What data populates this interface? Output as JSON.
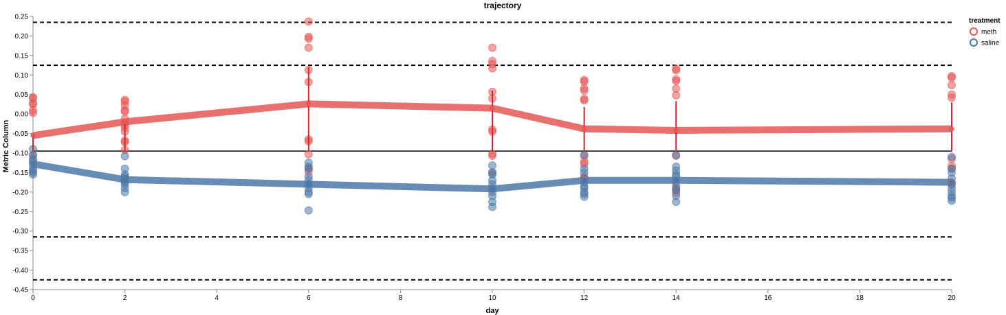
{
  "chart_data": {
    "type": "scatter",
    "title": "trajectory",
    "xlabel": "day",
    "ylabel": "Metric Column",
    "xlim": [
      0,
      20
    ],
    "ylim": [
      -0.45,
      0.25
    ],
    "x_ticks": [
      0,
      2,
      4,
      6,
      8,
      10,
      12,
      14,
      16,
      18,
      20
    ],
    "y_ticks": [
      0.25,
      0.2,
      0.15,
      0.1,
      0.05,
      0.0,
      -0.05,
      -0.1,
      -0.15,
      -0.2,
      -0.25,
      -0.3,
      -0.35,
      -0.4,
      -0.45
    ],
    "grid": false,
    "legend": {
      "title": "treatment",
      "placement": "top-right",
      "entries": [
        {
          "name": "meth",
          "color": "#e45756"
        },
        {
          "name": "saline",
          "color": "#4c78a8"
        }
      ]
    },
    "reference_lines": {
      "solid": [
        -0.095
      ],
      "dashed": [
        0.235,
        0.125,
        -0.315,
        -0.425
      ]
    },
    "series": [
      {
        "name": "meth",
        "color": "#e45756",
        "mean": [
          {
            "x": 0,
            "y": -0.055
          },
          {
            "x": 2,
            "y": -0.02
          },
          {
            "x": 6,
            "y": 0.026
          },
          {
            "x": 10,
            "y": 0.015
          },
          {
            "x": 12,
            "y": -0.038
          },
          {
            "x": 14,
            "y": -0.042
          },
          {
            "x": 20,
            "y": -0.038
          }
        ],
        "error_bars": [
          {
            "x": 0,
            "low": -0.095,
            "high": -0.055
          },
          {
            "x": 2,
            "low": -0.095,
            "high": -0.02
          },
          {
            "x": 6,
            "low": -0.095,
            "high": 0.12
          },
          {
            "x": 10,
            "low": -0.095,
            "high": 0.06
          },
          {
            "x": 12,
            "low": -0.095,
            "high": 0.018
          },
          {
            "x": 14,
            "low": -0.095,
            "high": 0.033
          },
          {
            "x": 20,
            "low": -0.095,
            "high": 0.03
          }
        ],
        "points": [
          {
            "x": 0,
            "y": 0.043
          },
          {
            "x": 0,
            "y": 0.04
          },
          {
            "x": 0,
            "y": 0.028
          },
          {
            "x": 0,
            "y": 0.025
          },
          {
            "x": 0,
            "y": 0.01
          },
          {
            "x": 0,
            "y": 0.003
          },
          {
            "x": 0,
            "y": -0.105
          },
          {
            "x": 0,
            "y": -0.125
          },
          {
            "x": 2,
            "y": 0.036
          },
          {
            "x": 2,
            "y": 0.032
          },
          {
            "x": 2,
            "y": 0.022
          },
          {
            "x": 2,
            "y": 0.01
          },
          {
            "x": 2,
            "y": 0.006
          },
          {
            "x": 2,
            "y": -0.012
          },
          {
            "x": 2,
            "y": -0.022
          },
          {
            "x": 2,
            "y": -0.028
          },
          {
            "x": 2,
            "y": -0.035
          },
          {
            "x": 2,
            "y": -0.045
          },
          {
            "x": 2,
            "y": -0.068
          },
          {
            "x": 2,
            "y": -0.072
          },
          {
            "x": 2,
            "y": -0.092
          },
          {
            "x": 6,
            "y": 0.237
          },
          {
            "x": 6,
            "y": 0.198
          },
          {
            "x": 6,
            "y": 0.193
          },
          {
            "x": 6,
            "y": 0.17
          },
          {
            "x": 6,
            "y": 0.113
          },
          {
            "x": 6,
            "y": 0.082
          },
          {
            "x": 6,
            "y": -0.065
          },
          {
            "x": 6,
            "y": -0.07
          },
          {
            "x": 6,
            "y": -0.103
          },
          {
            "x": 6,
            "y": -0.14
          },
          {
            "x": 6,
            "y": -0.148
          },
          {
            "x": 10,
            "y": 0.17
          },
          {
            "x": 10,
            "y": 0.136
          },
          {
            "x": 10,
            "y": 0.128
          },
          {
            "x": 10,
            "y": 0.117
          },
          {
            "x": 10,
            "y": 0.057
          },
          {
            "x": 10,
            "y": 0.04
          },
          {
            "x": 10,
            "y": -0.04
          },
          {
            "x": 10,
            "y": -0.045
          },
          {
            "x": 10,
            "y": -0.102
          },
          {
            "x": 10,
            "y": -0.107
          },
          {
            "x": 10,
            "y": -0.15
          },
          {
            "x": 12,
            "y": 0.087
          },
          {
            "x": 12,
            "y": 0.083
          },
          {
            "x": 12,
            "y": 0.066
          },
          {
            "x": 12,
            "y": 0.06
          },
          {
            "x": 12,
            "y": 0.039
          },
          {
            "x": 12,
            "y": 0.035
          },
          {
            "x": 12,
            "y": -0.107
          },
          {
            "x": 12,
            "y": -0.122
          },
          {
            "x": 12,
            "y": -0.128
          },
          {
            "x": 12,
            "y": -0.16
          },
          {
            "x": 12,
            "y": -0.166
          },
          {
            "x": 14,
            "y": 0.116
          },
          {
            "x": 14,
            "y": 0.112
          },
          {
            "x": 14,
            "y": 0.089
          },
          {
            "x": 14,
            "y": 0.085
          },
          {
            "x": 14,
            "y": 0.065
          },
          {
            "x": 14,
            "y": 0.048
          },
          {
            "x": 14,
            "y": -0.107
          },
          {
            "x": 14,
            "y": -0.185
          },
          {
            "x": 14,
            "y": -0.195
          },
          {
            "x": 14,
            "y": -0.202
          },
          {
            "x": 20,
            "y": 0.097
          },
          {
            "x": 20,
            "y": 0.093
          },
          {
            "x": 20,
            "y": 0.074
          },
          {
            "x": 20,
            "y": 0.05
          },
          {
            "x": 20,
            "y": 0.042
          },
          {
            "x": 20,
            "y": -0.115
          },
          {
            "x": 20,
            "y": -0.133
          },
          {
            "x": 20,
            "y": -0.14
          },
          {
            "x": 20,
            "y": -0.175
          },
          {
            "x": 20,
            "y": -0.178
          }
        ]
      },
      {
        "name": "saline",
        "color": "#4c78a8",
        "mean": [
          {
            "x": 0,
            "y": -0.128
          },
          {
            "x": 2,
            "y": -0.168
          },
          {
            "x": 6,
            "y": -0.18
          },
          {
            "x": 10,
            "y": -0.192
          },
          {
            "x": 12,
            "y": -0.17
          },
          {
            "x": 14,
            "y": -0.17
          },
          {
            "x": 20,
            "y": -0.175
          }
        ],
        "points": [
          {
            "x": 0,
            "y": -0.09
          },
          {
            "x": 0,
            "y": -0.105
          },
          {
            "x": 0,
            "y": -0.115
          },
          {
            "x": 0,
            "y": -0.12
          },
          {
            "x": 0,
            "y": -0.13
          },
          {
            "x": 0,
            "y": -0.14
          },
          {
            "x": 0,
            "y": -0.145
          },
          {
            "x": 0,
            "y": -0.15
          },
          {
            "x": 0,
            "y": -0.155
          },
          {
            "x": 2,
            "y": -0.108
          },
          {
            "x": 2,
            "y": -0.14
          },
          {
            "x": 2,
            "y": -0.155
          },
          {
            "x": 2,
            "y": -0.16
          },
          {
            "x": 2,
            "y": -0.165
          },
          {
            "x": 2,
            "y": -0.17
          },
          {
            "x": 2,
            "y": -0.175
          },
          {
            "x": 2,
            "y": -0.18
          },
          {
            "x": 2,
            "y": -0.19
          },
          {
            "x": 2,
            "y": -0.2
          },
          {
            "x": 6,
            "y": -0.125
          },
          {
            "x": 6,
            "y": -0.135
          },
          {
            "x": 6,
            "y": -0.14
          },
          {
            "x": 6,
            "y": -0.16
          },
          {
            "x": 6,
            "y": -0.17
          },
          {
            "x": 6,
            "y": -0.18
          },
          {
            "x": 6,
            "y": -0.19
          },
          {
            "x": 6,
            "y": -0.2
          },
          {
            "x": 6,
            "y": -0.205
          },
          {
            "x": 6,
            "y": -0.247
          },
          {
            "x": 10,
            "y": -0.132
          },
          {
            "x": 10,
            "y": -0.15
          },
          {
            "x": 10,
            "y": -0.155
          },
          {
            "x": 10,
            "y": -0.17
          },
          {
            "x": 10,
            "y": -0.18
          },
          {
            "x": 10,
            "y": -0.19
          },
          {
            "x": 10,
            "y": -0.2
          },
          {
            "x": 10,
            "y": -0.21
          },
          {
            "x": 10,
            "y": -0.225
          },
          {
            "x": 10,
            "y": -0.238
          },
          {
            "x": 12,
            "y": -0.105
          },
          {
            "x": 12,
            "y": -0.14
          },
          {
            "x": 12,
            "y": -0.15
          },
          {
            "x": 12,
            "y": -0.165
          },
          {
            "x": 12,
            "y": -0.175
          },
          {
            "x": 12,
            "y": -0.185
          },
          {
            "x": 12,
            "y": -0.19
          },
          {
            "x": 12,
            "y": -0.2
          },
          {
            "x": 12,
            "y": -0.205
          },
          {
            "x": 12,
            "y": -0.212
          },
          {
            "x": 14,
            "y": -0.105
          },
          {
            "x": 14,
            "y": -0.135
          },
          {
            "x": 14,
            "y": -0.145
          },
          {
            "x": 14,
            "y": -0.155
          },
          {
            "x": 14,
            "y": -0.16
          },
          {
            "x": 14,
            "y": -0.175
          },
          {
            "x": 14,
            "y": -0.19
          },
          {
            "x": 14,
            "y": -0.195
          },
          {
            "x": 14,
            "y": -0.21
          },
          {
            "x": 14,
            "y": -0.225
          },
          {
            "x": 20,
            "y": -0.11
          },
          {
            "x": 20,
            "y": -0.14
          },
          {
            "x": 20,
            "y": -0.15
          },
          {
            "x": 20,
            "y": -0.165
          },
          {
            "x": 20,
            "y": -0.18
          },
          {
            "x": 20,
            "y": -0.19
          },
          {
            "x": 20,
            "y": -0.2
          },
          {
            "x": 20,
            "y": -0.21
          },
          {
            "x": 20,
            "y": -0.215
          },
          {
            "x": 20,
            "y": -0.222
          }
        ]
      }
    ]
  }
}
